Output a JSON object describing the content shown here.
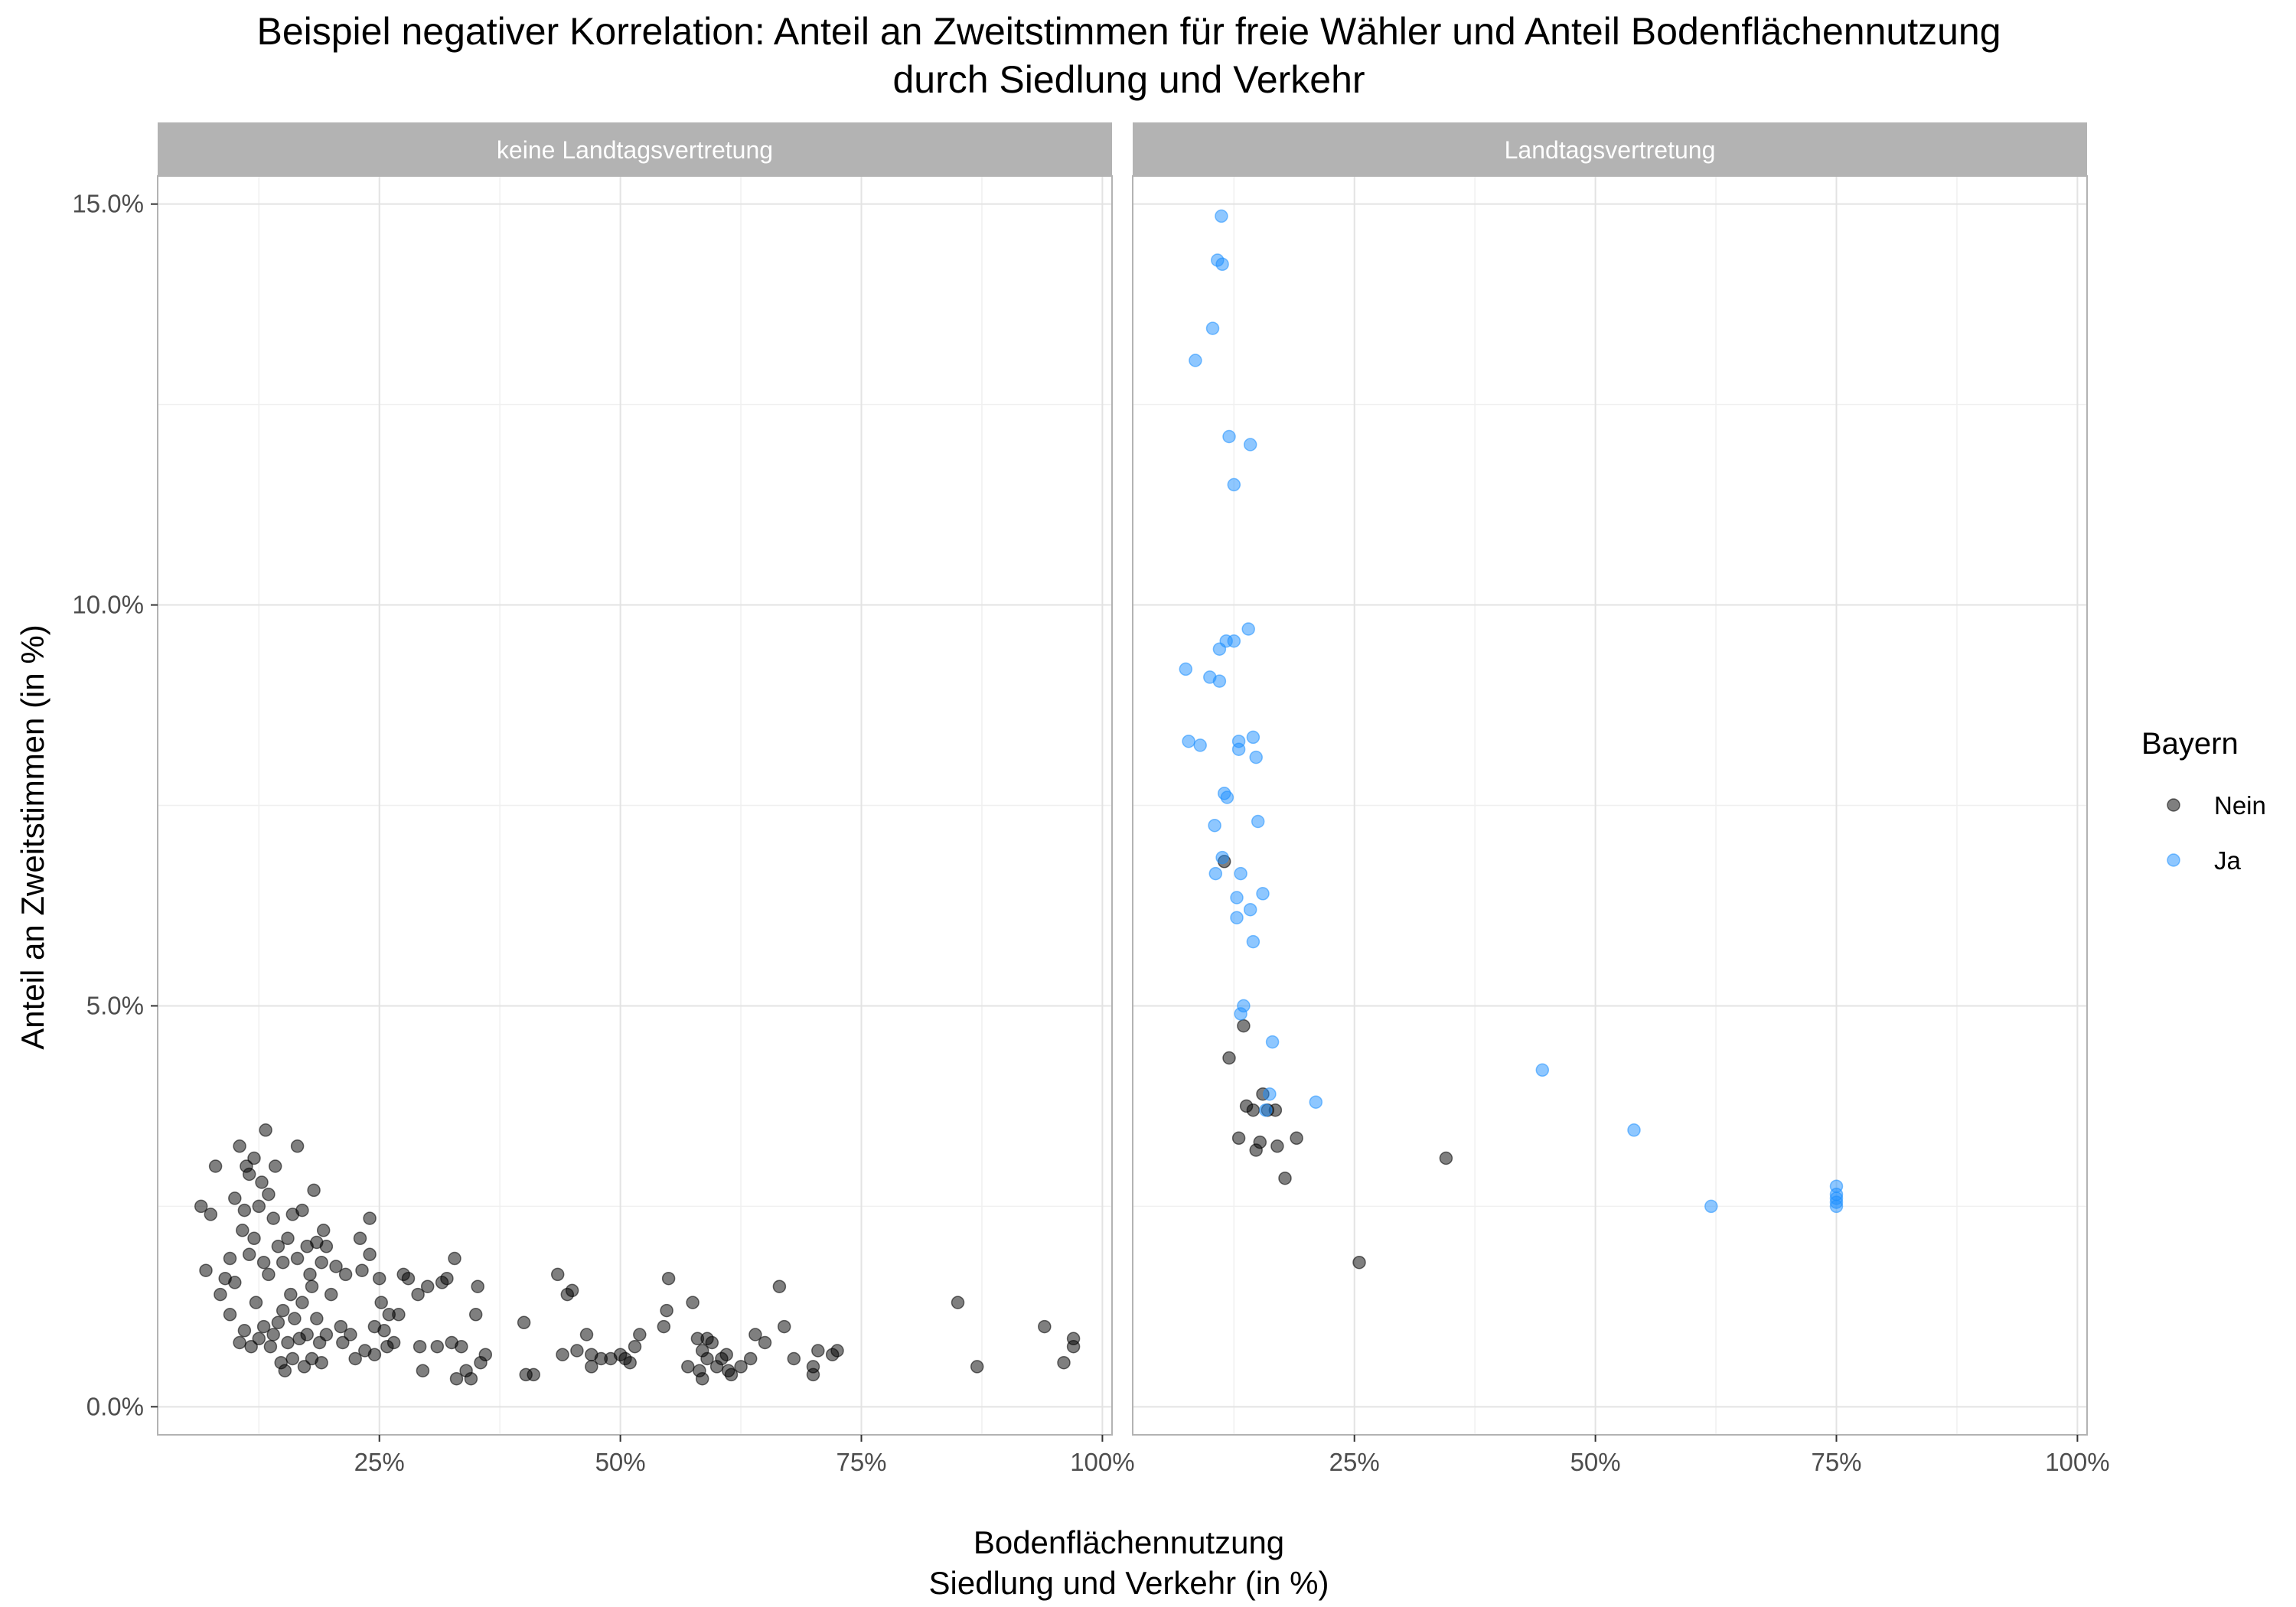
{
  "chart_data": {
    "type": "scatter",
    "title_lines": [
      "Beispiel negativer Korrelation: Anteil an Zweitstimmen für freie Wähler und Anteil Bodenflächennutzung",
      "durch Siedlung und Verkehr"
    ],
    "xlabel_lines": [
      "Bodenflächennutzung",
      "Siedlung und Verkehr (in %)"
    ],
    "ylabel": "Anteil an Zweitstimmen (in %)",
    "xlim": [
      0.02,
      1.01
    ],
    "ylim": [
      -0.0035,
      0.1535
    ],
    "x_ticks": [
      {
        "value": 0.25,
        "label": "25%"
      },
      {
        "value": 0.5,
        "label": "50%"
      },
      {
        "value": 0.75,
        "label": "75%"
      },
      {
        "value": 1.0,
        "label": "100%"
      }
    ],
    "y_ticks": [
      {
        "value": 0.0,
        "label": "0.0%"
      },
      {
        "value": 0.05,
        "label": "5.0%"
      },
      {
        "value": 0.1,
        "label": "10.0%"
      },
      {
        "value": 0.15,
        "label": "15.0%"
      }
    ],
    "grid": true,
    "legend": {
      "title": "Bayern",
      "position": "right",
      "entries": [
        {
          "label": "Nein",
          "color": "#000000"
        },
        {
          "label": "Ja",
          "color": "#1E90FF"
        }
      ]
    },
    "panels": [
      {
        "strip": "keine Landtagsvertretung",
        "series": [
          {
            "name": "Nein",
            "points": [
              [
                0.065,
                0.025
              ],
              [
                0.07,
                0.017
              ],
              [
                0.075,
                0.024
              ],
              [
                0.08,
                0.03
              ],
              [
                0.085,
                0.014
              ],
              [
                0.09,
                0.016
              ],
              [
                0.095,
                0.0185
              ],
              [
                0.095,
                0.0115
              ],
              [
                0.1,
                0.026
              ],
              [
                0.1,
                0.0155
              ],
              [
                0.105,
                0.0325
              ],
              [
                0.105,
                0.008
              ],
              [
                0.108,
                0.022
              ],
              [
                0.11,
                0.0095
              ],
              [
                0.11,
                0.0245
              ],
              [
                0.112,
                0.03
              ],
              [
                0.115,
                0.029
              ],
              [
                0.115,
                0.019
              ],
              [
                0.117,
                0.0075
              ],
              [
                0.12,
                0.031
              ],
              [
                0.12,
                0.021
              ],
              [
                0.122,
                0.013
              ],
              [
                0.125,
                0.025
              ],
              [
                0.125,
                0.0085
              ],
              [
                0.128,
                0.028
              ],
              [
                0.13,
                0.018
              ],
              [
                0.13,
                0.01
              ],
              [
                0.132,
                0.0345
              ],
              [
                0.135,
                0.0265
              ],
              [
                0.135,
                0.0165
              ],
              [
                0.137,
                0.0075
              ],
              [
                0.14,
                0.0235
              ],
              [
                0.14,
                0.009
              ],
              [
                0.142,
                0.03
              ],
              [
                0.145,
                0.02
              ],
              [
                0.145,
                0.0105
              ],
              [
                0.148,
                0.0055
              ],
              [
                0.15,
                0.018
              ],
              [
                0.15,
                0.012
              ],
              [
                0.152,
                0.0045
              ],
              [
                0.155,
                0.021
              ],
              [
                0.155,
                0.008
              ],
              [
                0.158,
                0.014
              ],
              [
                0.16,
                0.024
              ],
              [
                0.16,
                0.006
              ],
              [
                0.162,
                0.011
              ],
              [
                0.165,
                0.0325
              ],
              [
                0.165,
                0.0185
              ],
              [
                0.167,
                0.0085
              ],
              [
                0.17,
                0.0245
              ],
              [
                0.17,
                0.013
              ],
              [
                0.172,
                0.005
              ],
              [
                0.175,
                0.02
              ],
              [
                0.175,
                0.009
              ],
              [
                0.178,
                0.0165
              ],
              [
                0.18,
                0.015
              ],
              [
                0.18,
                0.006
              ],
              [
                0.182,
                0.027
              ],
              [
                0.185,
                0.0205
              ],
              [
                0.185,
                0.011
              ],
              [
                0.188,
                0.008
              ],
              [
                0.19,
                0.018
              ],
              [
                0.19,
                0.0055
              ],
              [
                0.192,
                0.022
              ],
              [
                0.195,
                0.02
              ],
              [
                0.195,
                0.009
              ],
              [
                0.2,
                0.014
              ],
              [
                0.205,
                0.0175
              ],
              [
                0.21,
                0.01
              ],
              [
                0.212,
                0.008
              ],
              [
                0.215,
                0.0165
              ],
              [
                0.22,
                0.009
              ],
              [
                0.225,
                0.006
              ],
              [
                0.23,
                0.021
              ],
              [
                0.232,
                0.017
              ],
              [
                0.235,
                0.007
              ],
              [
                0.24,
                0.0235
              ],
              [
                0.24,
                0.019
              ],
              [
                0.245,
                0.01
              ],
              [
                0.245,
                0.0065
              ],
              [
                0.25,
                0.016
              ],
              [
                0.252,
                0.013
              ],
              [
                0.255,
                0.0095
              ],
              [
                0.258,
                0.0075
              ],
              [
                0.26,
                0.0115
              ],
              [
                0.265,
                0.008
              ],
              [
                0.27,
                0.0115
              ],
              [
                0.275,
                0.0165
              ],
              [
                0.28,
                0.016
              ],
              [
                0.29,
                0.014
              ],
              [
                0.292,
                0.0075
              ],
              [
                0.295,
                0.0045
              ],
              [
                0.3,
                0.015
              ],
              [
                0.31,
                0.0075
              ],
              [
                0.315,
                0.0155
              ],
              [
                0.32,
                0.016
              ],
              [
                0.325,
                0.008
              ],
              [
                0.328,
                0.0185
              ],
              [
                0.33,
                0.0035
              ],
              [
                0.335,
                0.0075
              ],
              [
                0.34,
                0.0045
              ],
              [
                0.345,
                0.0035
              ],
              [
                0.35,
                0.0115
              ],
              [
                0.352,
                0.015
              ],
              [
                0.355,
                0.0055
              ],
              [
                0.36,
                0.0065
              ],
              [
                0.4,
                0.0105
              ],
              [
                0.402,
                0.004
              ],
              [
                0.41,
                0.004
              ],
              [
                0.435,
                0.0165
              ],
              [
                0.44,
                0.0065
              ],
              [
                0.445,
                0.014
              ],
              [
                0.45,
                0.0145
              ],
              [
                0.455,
                0.007
              ],
              [
                0.465,
                0.009
              ],
              [
                0.47,
                0.005
              ],
              [
                0.47,
                0.0065
              ],
              [
                0.48,
                0.006
              ],
              [
                0.49,
                0.006
              ],
              [
                0.5,
                0.0065
              ],
              [
                0.505,
                0.006
              ],
              [
                0.51,
                0.0055
              ],
              [
                0.515,
                0.0075
              ],
              [
                0.52,
                0.009
              ],
              [
                0.545,
                0.01
              ],
              [
                0.548,
                0.012
              ],
              [
                0.55,
                0.016
              ],
              [
                0.57,
                0.005
              ],
              [
                0.575,
                0.013
              ],
              [
                0.58,
                0.0085
              ],
              [
                0.582,
                0.0045
              ],
              [
                0.585,
                0.007
              ],
              [
                0.585,
                0.0035
              ],
              [
                0.59,
                0.0085
              ],
              [
                0.59,
                0.006
              ],
              [
                0.595,
                0.008
              ],
              [
                0.6,
                0.005
              ],
              [
                0.605,
                0.006
              ],
              [
                0.61,
                0.0065
              ],
              [
                0.612,
                0.0045
              ],
              [
                0.615,
                0.004
              ],
              [
                0.625,
                0.005
              ],
              [
                0.635,
                0.006
              ],
              [
                0.64,
                0.009
              ],
              [
                0.65,
                0.008
              ],
              [
                0.665,
                0.015
              ],
              [
                0.67,
                0.01
              ],
              [
                0.68,
                0.006
              ],
              [
                0.7,
                0.005
              ],
              [
                0.7,
                0.004
              ],
              [
                0.705,
                0.007
              ],
              [
                0.72,
                0.0065
              ],
              [
                0.725,
                0.007
              ],
              [
                0.85,
                0.013
              ],
              [
                0.87,
                0.005
              ],
              [
                0.94,
                0.01
              ],
              [
                0.96,
                0.0055
              ],
              [
                0.97,
                0.0085
              ],
              [
                0.97,
                0.0075
              ]
            ]
          }
        ]
      },
      {
        "strip": "Landtagsvertretung",
        "series": [
          {
            "name": "Nein",
            "points": [
              [
                0.115,
                0.068
              ],
              [
                0.12,
                0.0435
              ],
              [
                0.13,
                0.0335
              ],
              [
                0.135,
                0.0475
              ],
              [
                0.138,
                0.0375
              ],
              [
                0.145,
                0.037
              ],
              [
                0.148,
                0.032
              ],
              [
                0.152,
                0.033
              ],
              [
                0.155,
                0.039
              ],
              [
                0.16,
                0.037
              ],
              [
                0.168,
                0.037
              ],
              [
                0.17,
                0.0325
              ],
              [
                0.178,
                0.0285
              ],
              [
                0.19,
                0.0335
              ],
              [
                0.255,
                0.018
              ],
              [
                0.345,
                0.031
              ]
            ]
          },
          {
            "name": "Ja",
            "points": [
              [
                0.075,
                0.092
              ],
              [
                0.078,
                0.083
              ],
              [
                0.085,
                0.1305
              ],
              [
                0.09,
                0.0825
              ],
              [
                0.1,
                0.091
              ],
              [
                0.103,
                0.1345
              ],
              [
                0.105,
                0.0725
              ],
              [
                0.106,
                0.0665
              ],
              [
                0.108,
                0.143
              ],
              [
                0.11,
                0.0905
              ],
              [
                0.11,
                0.0945
              ],
              [
                0.112,
                0.1485
              ],
              [
                0.113,
                0.1425
              ],
              [
                0.113,
                0.0685
              ],
              [
                0.115,
                0.0765
              ],
              [
                0.117,
                0.0955
              ],
              [
                0.118,
                0.076
              ],
              [
                0.12,
                0.121
              ],
              [
                0.125,
                0.115
              ],
              [
                0.125,
                0.0955
              ],
              [
                0.128,
                0.0635
              ],
              [
                0.128,
                0.061
              ],
              [
                0.13,
                0.083
              ],
              [
                0.13,
                0.082
              ],
              [
                0.132,
                0.0665
              ],
              [
                0.132,
                0.049
              ],
              [
                0.135,
                0.05
              ],
              [
                0.14,
                0.097
              ],
              [
                0.142,
                0.12
              ],
              [
                0.142,
                0.062
              ],
              [
                0.145,
                0.0835
              ],
              [
                0.145,
                0.058
              ],
              [
                0.148,
                0.081
              ],
              [
                0.15,
                0.073
              ],
              [
                0.155,
                0.064
              ],
              [
                0.158,
                0.037
              ],
              [
                0.162,
                0.039
              ],
              [
                0.165,
                0.0455
              ],
              [
                0.21,
                0.038
              ],
              [
                0.445,
                0.042
              ],
              [
                0.54,
                0.0345
              ],
              [
                0.62,
                0.025
              ],
              [
                0.75,
                0.0275
              ],
              [
                0.75,
                0.0265
              ],
              [
                0.75,
                0.026
              ],
              [
                0.75,
                0.0255
              ],
              [
                0.75,
                0.025
              ]
            ]
          }
        ]
      }
    ]
  }
}
